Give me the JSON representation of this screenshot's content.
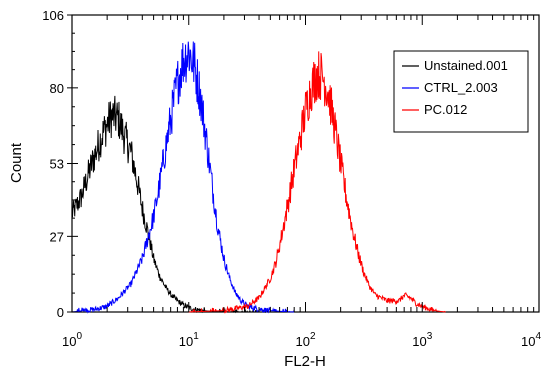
{
  "chart_data": {
    "type": "line",
    "title": "",
    "xlabel": "FL2-H",
    "ylabel": "Count",
    "x_scale": "log",
    "xlim": [
      1,
      10000
    ],
    "ylim": [
      0,
      106
    ],
    "x_ticks": [
      {
        "base": "10",
        "exp": "0",
        "value": 1
      },
      {
        "base": "10",
        "exp": "1",
        "value": 10
      },
      {
        "base": "10",
        "exp": "2",
        "value": 100
      },
      {
        "base": "10",
        "exp": "3",
        "value": 1000
      },
      {
        "base": "10",
        "exp": "4",
        "value": 10000
      }
    ],
    "y_ticks": [
      {
        "label": "0",
        "value": 0
      },
      {
        "label": "27",
        "value": 27
      },
      {
        "label": "53",
        "value": 53
      },
      {
        "label": "80",
        "value": 80
      },
      {
        "label": "106",
        "value": 106
      }
    ],
    "grid": false,
    "legend_position": "top-right",
    "series": [
      {
        "name": "Unstained.001",
        "color": "#000000",
        "x": [
          1.0,
          1.2,
          1.4,
          1.6,
          1.8,
          2.0,
          2.2,
          2.5,
          2.8,
          3.2,
          3.6,
          4.0,
          4.5,
          5.0,
          5.6,
          6.3,
          7.1,
          8.0,
          9.0,
          10.0,
          11.2,
          12.6,
          14.1,
          16.0,
          20.0,
          25.0,
          32.0,
          40.0,
          50.0
        ],
        "y": [
          35,
          41,
          50,
          57,
          63,
          67,
          70,
          69,
          63,
          57,
          47,
          37,
          28,
          19,
          13,
          9,
          6,
          4,
          2.5,
          1.5,
          1.0,
          0.6,
          0.4,
          0.2,
          0.1,
          0,
          0,
          0,
          0
        ]
      },
      {
        "name": "CTRL_2.003",
        "color": "#0000ff",
        "x": [
          1.0,
          1.6,
          2.0,
          2.5,
          3.2,
          4.0,
          5.0,
          5.6,
          6.3,
          7.1,
          8.0,
          9.0,
          10.0,
          11.2,
          12.6,
          14.1,
          16.0,
          17.8,
          20.0,
          22.4,
          25.0,
          28.0,
          32.0,
          40.0,
          50.0,
          63.0,
          80.0
        ],
        "y": [
          0,
          1,
          2,
          5,
          10,
          19,
          34,
          45,
          58,
          70,
          82,
          90,
          93,
          88,
          77,
          62,
          44,
          30,
          19,
          12,
          7,
          4,
          2,
          1,
          0.5,
          0.2,
          0
        ]
      },
      {
        "name": "PC.012",
        "color": "#ff0000",
        "x": [
          10.0,
          20.0,
          32.0,
          40.0,
          50.0,
          56.0,
          63.0,
          71.0,
          80.0,
          90.0,
          100.0,
          112.0,
          126.0,
          141.0,
          158.0,
          178.0,
          200.0,
          224.0,
          251.0,
          282.0,
          316.0,
          355.0,
          398.0,
          500.0,
          631.0,
          708.0,
          794.0,
          891.0,
          1000.0,
          1259.0,
          1585.0
        ],
        "y": [
          0,
          0.5,
          2,
          5,
          12,
          18,
          28,
          39,
          51,
          62,
          72,
          80,
          85,
          84,
          78,
          66,
          53,
          41,
          30,
          21,
          14,
          9,
          6,
          4,
          4,
          6,
          5,
          3,
          2,
          0.5,
          0
        ]
      }
    ]
  }
}
